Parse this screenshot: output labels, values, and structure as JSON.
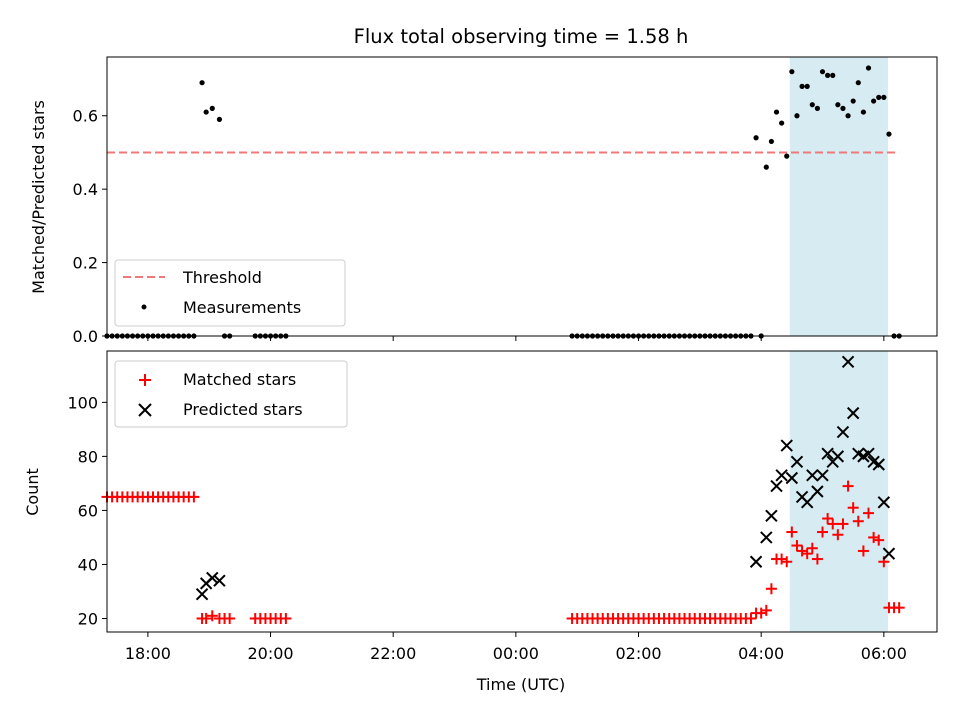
{
  "title": "Flux total observing time = 1.58 h",
  "colors": {
    "threshold": "#f07878",
    "measurement": "#000000",
    "matched": "#ff0000",
    "predicted": "#000000",
    "span": "#add8e6"
  },
  "chart_data": [
    {
      "type": "scatter",
      "ylabel": "Matched/Predicted stars",
      "xlim": [
        "17:20",
        "06:52"
      ],
      "ylim": [
        0,
        0.76
      ],
      "yticks": [
        0.0,
        0.2,
        0.4,
        0.6
      ],
      "ytick_labels": [
        "0.0",
        "0.2",
        "0.4",
        "0.6"
      ],
      "highlight_span": [
        "04:28",
        "06:04"
      ],
      "legend": {
        "position": "lower-left",
        "entries": [
          "Threshold",
          "Measurements"
        ]
      },
      "threshold": {
        "name": "Threshold",
        "value": 0.5,
        "x_range": [
          "17:20",
          "06:15"
        ]
      },
      "measurements": {
        "name": "Measurements",
        "points": [
          [
            "17:20",
            0
          ],
          [
            "17:25",
            0
          ],
          [
            "17:30",
            0
          ],
          [
            "17:35",
            0
          ],
          [
            "17:40",
            0
          ],
          [
            "17:45",
            0
          ],
          [
            "17:50",
            0
          ],
          [
            "17:55",
            0
          ],
          [
            "18:00",
            0
          ],
          [
            "18:05",
            0
          ],
          [
            "18:10",
            0
          ],
          [
            "18:15",
            0
          ],
          [
            "18:20",
            0
          ],
          [
            "18:25",
            0
          ],
          [
            "18:30",
            0
          ],
          [
            "18:35",
            0
          ],
          [
            "18:40",
            0
          ],
          [
            "18:45",
            0
          ],
          [
            "18:53",
            0.69
          ],
          [
            "18:57",
            0.61
          ],
          [
            "19:03",
            0.62
          ],
          [
            "19:10",
            0.59
          ],
          [
            "19:15",
            0
          ],
          [
            "19:20",
            0
          ],
          [
            "19:45",
            0
          ],
          [
            "19:50",
            0
          ],
          [
            "19:55",
            0
          ],
          [
            "20:00",
            0
          ],
          [
            "20:05",
            0
          ],
          [
            "20:10",
            0
          ],
          [
            "20:15",
            0
          ],
          [
            "00:55",
            0
          ],
          [
            "01:00",
            0
          ],
          [
            "01:05",
            0
          ],
          [
            "01:10",
            0
          ],
          [
            "01:15",
            0
          ],
          [
            "01:20",
            0
          ],
          [
            "01:25",
            0
          ],
          [
            "01:30",
            0
          ],
          [
            "01:35",
            0
          ],
          [
            "01:40",
            0
          ],
          [
            "01:45",
            0
          ],
          [
            "01:50",
            0
          ],
          [
            "01:55",
            0
          ],
          [
            "02:00",
            0
          ],
          [
            "02:05",
            0
          ],
          [
            "02:10",
            0
          ],
          [
            "02:15",
            0
          ],
          [
            "02:20",
            0
          ],
          [
            "02:25",
            0
          ],
          [
            "02:30",
            0
          ],
          [
            "02:35",
            0
          ],
          [
            "02:40",
            0
          ],
          [
            "02:45",
            0
          ],
          [
            "02:50",
            0
          ],
          [
            "02:55",
            0
          ],
          [
            "03:00",
            0
          ],
          [
            "03:05",
            0
          ],
          [
            "03:10",
            0
          ],
          [
            "03:15",
            0
          ],
          [
            "03:20",
            0
          ],
          [
            "03:25",
            0
          ],
          [
            "03:30",
            0
          ],
          [
            "03:35",
            0
          ],
          [
            "03:40",
            0
          ],
          [
            "03:45",
            0
          ],
          [
            "03:50",
            0
          ],
          [
            "04:00",
            0
          ],
          [
            "03:55",
            0.54
          ],
          [
            "04:05",
            0.46
          ],
          [
            "04:10",
            0.53
          ],
          [
            "04:15",
            0.61
          ],
          [
            "04:20",
            0.58
          ],
          [
            "04:25",
            0.49
          ],
          [
            "04:30",
            0.72
          ],
          [
            "04:35",
            0.6
          ],
          [
            "04:40",
            0.68
          ],
          [
            "04:45",
            0.68
          ],
          [
            "04:50",
            0.63
          ],
          [
            "04:55",
            0.62
          ],
          [
            "05:00",
            0.72
          ],
          [
            "05:05",
            0.71
          ],
          [
            "05:10",
            0.71
          ],
          [
            "05:15",
            0.63
          ],
          [
            "05:20",
            0.62
          ],
          [
            "05:25",
            0.6
          ],
          [
            "05:30",
            0.64
          ],
          [
            "05:35",
            0.69
          ],
          [
            "05:40",
            0.61
          ],
          [
            "05:45",
            0.73
          ],
          [
            "05:50",
            0.64
          ],
          [
            "05:55",
            0.65
          ],
          [
            "06:00",
            0.65
          ],
          [
            "06:05",
            0.55
          ],
          [
            "06:10",
            0
          ],
          [
            "06:15",
            0
          ]
        ]
      }
    },
    {
      "type": "scatter",
      "xlabel": "Time (UTC)",
      "ylabel": "Count",
      "xlim": [
        "17:20",
        "06:52"
      ],
      "ylim": [
        15,
        119
      ],
      "yticks": [
        20,
        40,
        60,
        80,
        100
      ],
      "xticks": [
        "18:00",
        "20:00",
        "22:00",
        "00:00",
        "02:00",
        "04:00",
        "06:00"
      ],
      "highlight_span": [
        "04:28",
        "06:04"
      ],
      "legend": {
        "position": "upper-left",
        "entries": [
          "Matched stars",
          "Predicted stars"
        ]
      },
      "series": [
        {
          "name": "Matched stars",
          "marker": "plus",
          "points": [
            [
              "17:20",
              65
            ],
            [
              "17:25",
              65
            ],
            [
              "17:30",
              65
            ],
            [
              "17:35",
              65
            ],
            [
              "17:40",
              65
            ],
            [
              "17:45",
              65
            ],
            [
              "17:50",
              65
            ],
            [
              "17:55",
              65
            ],
            [
              "18:00",
              65
            ],
            [
              "18:05",
              65
            ],
            [
              "18:10",
              65
            ],
            [
              "18:15",
              65
            ],
            [
              "18:20",
              65
            ],
            [
              "18:25",
              65
            ],
            [
              "18:30",
              65
            ],
            [
              "18:35",
              65
            ],
            [
              "18:40",
              65
            ],
            [
              "18:45",
              65
            ],
            [
              "18:53",
              20
            ],
            [
              "18:57",
              20
            ],
            [
              "19:03",
              21
            ],
            [
              "19:10",
              20
            ],
            [
              "19:15",
              20
            ],
            [
              "19:20",
              20
            ],
            [
              "19:45",
              20
            ],
            [
              "19:50",
              20
            ],
            [
              "19:55",
              20
            ],
            [
              "20:00",
              20
            ],
            [
              "20:05",
              20
            ],
            [
              "20:10",
              20
            ],
            [
              "20:15",
              20
            ],
            [
              "00:55",
              20
            ],
            [
              "01:00",
              20
            ],
            [
              "01:05",
              20
            ],
            [
              "01:10",
              20
            ],
            [
              "01:15",
              20
            ],
            [
              "01:20",
              20
            ],
            [
              "01:25",
              20
            ],
            [
              "01:30",
              20
            ],
            [
              "01:35",
              20
            ],
            [
              "01:40",
              20
            ],
            [
              "01:45",
              20
            ],
            [
              "01:50",
              20
            ],
            [
              "01:55",
              20
            ],
            [
              "02:00",
              20
            ],
            [
              "02:05",
              20
            ],
            [
              "02:10",
              20
            ],
            [
              "02:15",
              20
            ],
            [
              "02:20",
              20
            ],
            [
              "02:25",
              20
            ],
            [
              "02:30",
              20
            ],
            [
              "02:35",
              20
            ],
            [
              "02:40",
              20
            ],
            [
              "02:45",
              20
            ],
            [
              "02:50",
              20
            ],
            [
              "02:55",
              20
            ],
            [
              "03:00",
              20
            ],
            [
              "03:05",
              20
            ],
            [
              "03:10",
              20
            ],
            [
              "03:15",
              20
            ],
            [
              "03:20",
              20
            ],
            [
              "03:25",
              20
            ],
            [
              "03:30",
              20
            ],
            [
              "03:35",
              20
            ],
            [
              "03:40",
              20
            ],
            [
              "03:45",
              20
            ],
            [
              "03:50",
              20
            ],
            [
              "03:55",
              22
            ],
            [
              "04:00",
              22
            ],
            [
              "04:05",
              23
            ],
            [
              "04:10",
              31
            ],
            [
              "04:15",
              42
            ],
            [
              "04:20",
              42
            ],
            [
              "04:25",
              41
            ],
            [
              "04:30",
              52
            ],
            [
              "04:35",
              47
            ],
            [
              "04:40",
              45
            ],
            [
              "04:45",
              44
            ],
            [
              "04:50",
              46
            ],
            [
              "04:55",
              42
            ],
            [
              "05:00",
              52
            ],
            [
              "05:05",
              57
            ],
            [
              "05:10",
              55
            ],
            [
              "05:15",
              51
            ],
            [
              "05:20",
              55
            ],
            [
              "05:25",
              69
            ],
            [
              "05:30",
              61
            ],
            [
              "05:35",
              56
            ],
            [
              "05:40",
              45
            ],
            [
              "05:45",
              59
            ],
            [
              "05:50",
              50
            ],
            [
              "05:55",
              49
            ],
            [
              "06:00",
              41
            ],
            [
              "06:05",
              24
            ],
            [
              "06:10",
              24
            ],
            [
              "06:15",
              24
            ]
          ]
        },
        {
          "name": "Predicted stars",
          "marker": "x",
          "points": [
            [
              "18:53",
              29
            ],
            [
              "18:57",
              33
            ],
            [
              "19:03",
              35
            ],
            [
              "19:10",
              34
            ],
            [
              "03:55",
              41
            ],
            [
              "04:05",
              50
            ],
            [
              "04:10",
              58
            ],
            [
              "04:15",
              69
            ],
            [
              "04:20",
              73
            ],
            [
              "04:25",
              84
            ],
            [
              "04:30",
              72
            ],
            [
              "04:35",
              78
            ],
            [
              "04:40",
              65
            ],
            [
              "04:45",
              63
            ],
            [
              "04:50",
              73
            ],
            [
              "04:55",
              67
            ],
            [
              "05:00",
              73
            ],
            [
              "05:05",
              81
            ],
            [
              "05:10",
              78
            ],
            [
              "05:15",
              80
            ],
            [
              "05:20",
              89
            ],
            [
              "05:25",
              115
            ],
            [
              "05:30",
              96
            ],
            [
              "05:35",
              81
            ],
            [
              "05:40",
              80
            ],
            [
              "05:45",
              81
            ],
            [
              "05:50",
              78
            ],
            [
              "05:55",
              77
            ],
            [
              "06:00",
              63
            ],
            [
              "06:05",
              44
            ]
          ]
        }
      ]
    }
  ]
}
